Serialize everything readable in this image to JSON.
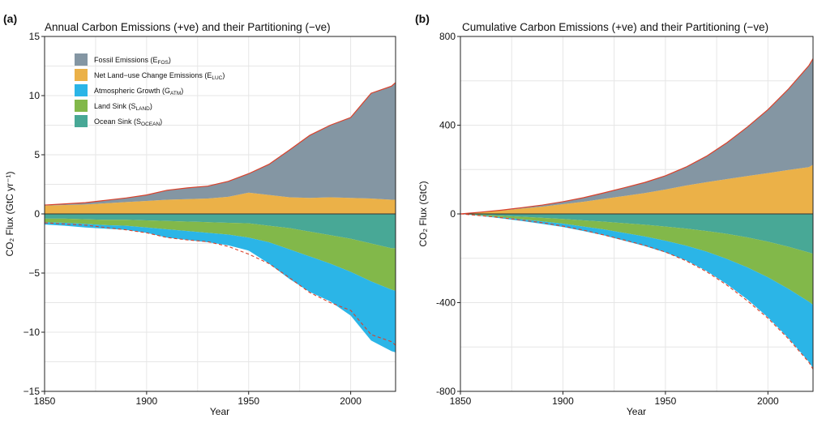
{
  "chart_data": [
    {
      "panel": "(a)",
      "type": "area",
      "title": "Annual Carbon Emissions (+ve) and their Partitioning (−ve)",
      "xlabel": "Year",
      "ylabel": "CO₂ Flux (GtC yr⁻¹)",
      "xlim": [
        1850,
        2022
      ],
      "ylim": [
        -15,
        15
      ],
      "xticks": [
        "1850",
        "1900",
        "1950",
        "2000"
      ],
      "yticks": [
        "15",
        "10",
        "5",
        "0",
        "−5",
        "−10",
        "−15"
      ],
      "grid": true,
      "legend_position": "top-left",
      "legend": [
        {
          "label": "Fossil Emissions (E",
          "sub": "FOS",
          "close": ")",
          "color": "#8496a3"
        },
        {
          "label": "Net Land−use Change Emissions (E",
          "sub": "LUC",
          "close": ")",
          "color": "#ebb148"
        },
        {
          "label": "Atmospheric Growth (G",
          "sub": "ATM",
          "close": ")",
          "color": "#2bb5e7"
        },
        {
          "label": "Land Sink (S",
          "sub": "LAND",
          "close": ")",
          "color": "#82b84a"
        },
        {
          "label": "Ocean Sink (S",
          "sub": "OCEAN",
          "close": ")",
          "color": "#48a896"
        }
      ],
      "x": [
        1850,
        1860,
        1870,
        1880,
        1890,
        1900,
        1910,
        1920,
        1930,
        1940,
        1950,
        1960,
        1970,
        1980,
        1990,
        2000,
        2010,
        2020,
        2022
      ],
      "series": [
        {
          "name": "Fossil Emissions",
          "values": [
            0.05,
            0.1,
            0.15,
            0.25,
            0.35,
            0.5,
            0.8,
            0.95,
            1.05,
            1.3,
            1.6,
            2.6,
            4.0,
            5.3,
            6.1,
            6.8,
            8.9,
            9.6,
            9.9
          ]
        },
        {
          "name": "Net Land-use Change Emissions",
          "values": [
            0.7,
            0.75,
            0.8,
            0.9,
            1.0,
            1.1,
            1.2,
            1.25,
            1.3,
            1.45,
            1.8,
            1.6,
            1.4,
            1.35,
            1.4,
            1.35,
            1.3,
            1.2,
            1.2
          ]
        },
        {
          "name": "Ocean Sink",
          "values": [
            -0.4,
            -0.4,
            -0.45,
            -0.5,
            -0.5,
            -0.55,
            -0.6,
            -0.65,
            -0.7,
            -0.75,
            -0.8,
            -1.0,
            -1.2,
            -1.5,
            -1.8,
            -2.1,
            -2.5,
            -2.9,
            -2.9
          ]
        },
        {
          "name": "Land Sink",
          "values": [
            -0.3,
            -0.35,
            -0.4,
            -0.45,
            -0.5,
            -0.6,
            -0.7,
            -0.8,
            -0.9,
            -1.0,
            -1.2,
            -1.4,
            -1.8,
            -2.1,
            -2.4,
            -2.8,
            -3.2,
            -3.5,
            -3.6
          ]
        },
        {
          "name": "Atmospheric Growth",
          "values": [
            -0.2,
            -0.25,
            -0.3,
            -0.3,
            -0.35,
            -0.45,
            -0.7,
            -0.75,
            -0.8,
            -0.9,
            -1.1,
            -1.8,
            -2.5,
            -3.0,
            -3.2,
            -3.7,
            -5.0,
            -5.2,
            -5.2
          ]
        },
        {
          "name": "Total Emissions",
          "values": [
            0.75,
            0.85,
            0.95,
            1.15,
            1.35,
            1.6,
            2.0,
            2.2,
            2.35,
            2.75,
            3.4,
            4.2,
            5.4,
            6.65,
            7.5,
            8.15,
            10.2,
            10.8,
            11.1
          ]
        },
        {
          "name": "Total Sinks",
          "values": [
            -0.7,
            -0.8,
            -0.9,
            -1.0,
            -1.1,
            -1.3,
            -1.6,
            -1.8,
            -2.0,
            -2.2,
            -2.6,
            -4.1,
            -5.4,
            -6.6,
            -7.3,
            -8.4,
            -10.3,
            -11.2,
            -11.2
          ]
        }
      ]
    },
    {
      "panel": "(b)",
      "type": "area",
      "title": "Cumulative Carbon Emissions (+ve) and their Partitioning (−ve)",
      "xlabel": "Year",
      "ylabel": "CO₂ Flux (GtC)",
      "xlim": [
        1850,
        2022
      ],
      "ylim": [
        -800,
        800
      ],
      "xticks": [
        "1850",
        "1900",
        "1950",
        "2000"
      ],
      "yticks": [
        "800",
        "400",
        "0",
        "-400",
        "-800"
      ],
      "grid": true,
      "x": [
        1850,
        1860,
        1870,
        1880,
        1890,
        1900,
        1910,
        1920,
        1930,
        1940,
        1950,
        1960,
        1970,
        1980,
        1990,
        2000,
        2010,
        2020,
        2022
      ],
      "series": [
        {
          "name": "Fossil Emissions",
          "values": [
            0,
            1,
            2,
            4,
            7,
            11,
            18,
            27,
            37,
            48,
            62,
            83,
            117,
            164,
            221,
            286,
            365,
            458,
            478
          ]
        },
        {
          "name": "Net Land-use Change Emissions",
          "values": [
            0,
            7,
            15,
            24,
            33,
            44,
            55,
            68,
            81,
            94,
            110,
            128,
            143,
            157,
            171,
            184,
            198,
            211,
            222
          ]
        },
        {
          "name": "Ocean Sink",
          "values": [
            0,
            -4,
            -8,
            -13,
            -18,
            -23,
            -29,
            -35,
            -42,
            -49,
            -57,
            -66,
            -77,
            -90,
            -106,
            -125,
            -148,
            -174,
            -180
          ]
        },
        {
          "name": "Land Sink",
          "values": [
            0,
            -3,
            -7,
            -11,
            -16,
            -21,
            -28,
            -35,
            -44,
            -53,
            -64,
            -77,
            -93,
            -113,
            -135,
            -161,
            -190,
            -222,
            -230
          ]
        },
        {
          "name": "Atmospheric Growth",
          "values": [
            0,
            -2,
            -5,
            -8,
            -11,
            -15,
            -20,
            -27,
            -35,
            -43,
            -53,
            -66,
            -87,
            -114,
            -145,
            -180,
            -222,
            -271,
            -285
          ]
        },
        {
          "name": "Total Emissions",
          "values": [
            0,
            8,
            17,
            28,
            40,
            55,
            73,
            95,
            118,
            142,
            172,
            211,
            260,
            321,
            392,
            470,
            563,
            669,
            700
          ]
        },
        {
          "name": "Total Sinks",
          "values": [
            0,
            -9,
            -20,
            -32,
            -45,
            -59,
            -77,
            -97,
            -121,
            -145,
            -174,
            -209,
            -257,
            -317,
            -386,
            -466,
            -560,
            -667,
            -700
          ]
        }
      ]
    }
  ]
}
